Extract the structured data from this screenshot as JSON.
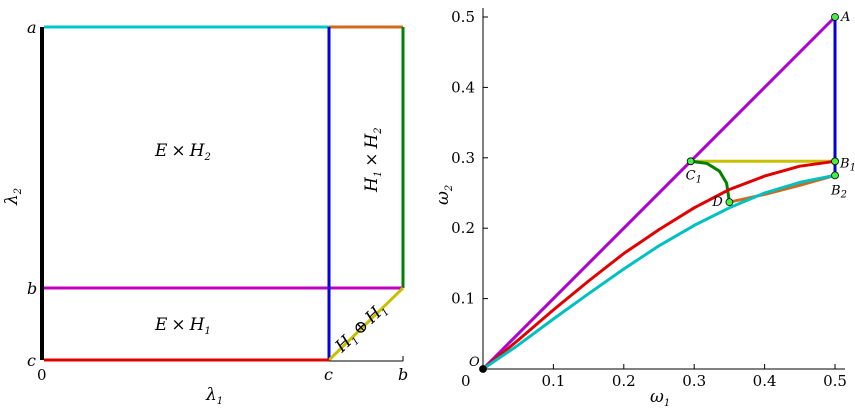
{
  "left_panel": {
    "corner_labels": {
      "a": "a",
      "b": "b",
      "c": "c"
    },
    "x_ticks": {
      "zero": "0",
      "c": "c",
      "b": "b"
    },
    "x_axis_label": {
      "base": "λ",
      "sub": "1"
    },
    "y_axis_label": {
      "base": "λ",
      "sub": "2"
    },
    "regions": {
      "upper": {
        "a": "E",
        "op": "×",
        "b": "H",
        "sub": "2"
      },
      "lower": {
        "a": "E",
        "op": "×",
        "b": "H",
        "sub": "1"
      },
      "right": {
        "a": "H",
        "asub": "1",
        "op": "×",
        "b": "H",
        "bsub": "2"
      },
      "triangle": {
        "a": "H",
        "asub": "1",
        "op": "⊕",
        "b": "H",
        "bsub": "1"
      }
    },
    "colors": {
      "left_edge": "#000000",
      "top_edge": "#00c8c8",
      "top_right_edge": "#d2691e",
      "right_edge": "#008000",
      "middle_line": "#c000c0",
      "bottom_edge": "#e00000",
      "vertical_c": "#0000e0",
      "diagonal": "#c8c000"
    }
  },
  "right_panel": {
    "chart_data": {
      "type": "line",
      "xlabel": "ω1",
      "ylabel": "ω2",
      "xlim": [
        0,
        0.5
      ],
      "ylim": [
        0,
        0.5
      ],
      "x_ticks": [
        "0",
        "0.1",
        "0.2",
        "0.3",
        "0.4",
        "0.5"
      ],
      "y_ticks": [
        "0",
        "0.1",
        "0.2",
        "0.3",
        "0.4",
        "0.5"
      ],
      "points": [
        {
          "name": "O",
          "sub": "",
          "x": 0.0,
          "y": 0.0,
          "color": "#000000"
        },
        {
          "name": "A",
          "sub": "",
          "x": 0.5,
          "y": 0.5,
          "color": "#44ee44"
        },
        {
          "name": "B",
          "sub": "1",
          "x": 0.5,
          "y": 0.295,
          "color": "#44ee44"
        },
        {
          "name": "B",
          "sub": "2",
          "x": 0.5,
          "y": 0.275,
          "color": "#44ee44"
        },
        {
          "name": "C",
          "sub": "1",
          "x": 0.295,
          "y": 0.295,
          "color": "#44ee44"
        },
        {
          "name": "D",
          "sub": "",
          "x": 0.35,
          "y": 0.237,
          "color": "#44ee44"
        }
      ],
      "series": [
        {
          "color": "#b000d0",
          "points": [
            [
              0,
              0
            ],
            [
              0.5,
              0.5
            ]
          ]
        },
        {
          "color": "#0000e0",
          "points": [
            [
              0.5,
              0.5
            ],
            [
              0.5,
              0.275
            ]
          ]
        },
        {
          "color": "#c8c000",
          "points": [
            [
              0.295,
              0.295
            ],
            [
              0.5,
              0.295
            ]
          ]
        },
        {
          "color": "#008000",
          "points": [
            [
              0.295,
              0.295
            ],
            [
              0.318,
              0.292
            ],
            [
              0.336,
              0.281
            ],
            [
              0.346,
              0.264
            ],
            [
              0.35,
              0.237
            ]
          ]
        },
        {
          "color": "#d2691e",
          "points": [
            [
              0.35,
              0.237
            ],
            [
              0.4,
              0.248
            ],
            [
              0.45,
              0.261
            ],
            [
              0.5,
              0.275
            ]
          ]
        },
        {
          "color": "#e00000",
          "points": [
            [
              0,
              0
            ],
            [
              0.05,
              0.041
            ],
            [
              0.1,
              0.084
            ],
            [
              0.15,
              0.125
            ],
            [
              0.2,
              0.164
            ],
            [
              0.25,
              0.198
            ],
            [
              0.3,
              0.229
            ],
            [
              0.35,
              0.255
            ],
            [
              0.4,
              0.274
            ],
            [
              0.45,
              0.288
            ],
            [
              0.5,
              0.295
            ]
          ]
        },
        {
          "color": "#00c0c0",
          "points": [
            [
              0,
              0
            ],
            [
              0.05,
              0.034
            ],
            [
              0.1,
              0.071
            ],
            [
              0.15,
              0.107
            ],
            [
              0.2,
              0.142
            ],
            [
              0.25,
              0.175
            ],
            [
              0.3,
              0.204
            ],
            [
              0.35,
              0.229
            ],
            [
              0.4,
              0.25
            ],
            [
              0.45,
              0.265
            ],
            [
              0.5,
              0.275
            ]
          ]
        }
      ]
    }
  }
}
